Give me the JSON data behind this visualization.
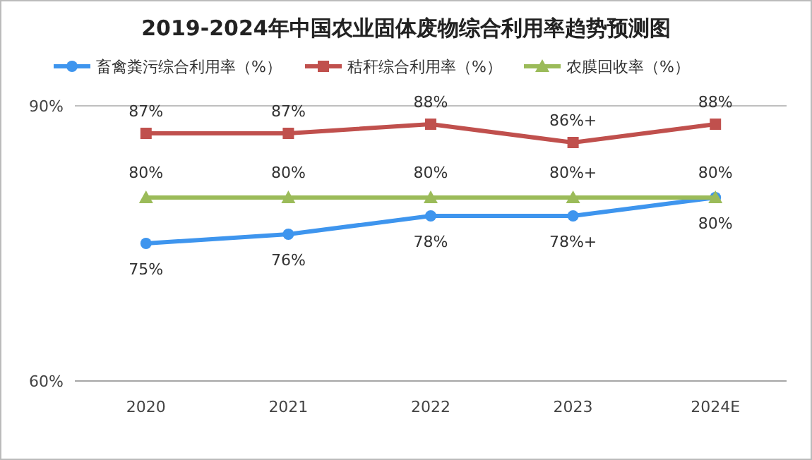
{
  "chart_data": {
    "type": "line",
    "title": "2019-2024年中国农业固体废物综合利用率趋势预测图",
    "categories": [
      "2020",
      "2021",
      "2022",
      "2023",
      "2024E"
    ],
    "ylim": [
      60,
      90
    ],
    "yticks": [
      {
        "value": 60,
        "label": "60%"
      },
      {
        "value": 90,
        "label": "90%"
      }
    ],
    "legend": "top",
    "series": [
      {
        "name": "畜禽粪污综合利用率（%）",
        "color": "#3e95ee",
        "marker": "circle",
        "values": [
          75,
          76,
          78,
          78,
          80
        ],
        "value_labels": [
          "75%",
          "76%",
          "78%",
          "78%+",
          "80%"
        ]
      },
      {
        "name": "秸秆综合利用率（%）",
        "color": "#c0504d",
        "marker": "square",
        "values": [
          87,
          87,
          88,
          86,
          88
        ],
        "value_labels": [
          "87%",
          "87%",
          "88%",
          "86%+",
          "88%"
        ]
      },
      {
        "name": "农膜回收率（%）",
        "color": "#9bbb59",
        "marker": "triangle",
        "values": [
          80,
          80,
          80,
          80,
          80
        ],
        "value_labels": [
          "80%",
          "80%",
          "80%",
          "80%+",
          "80%"
        ]
      }
    ]
  }
}
